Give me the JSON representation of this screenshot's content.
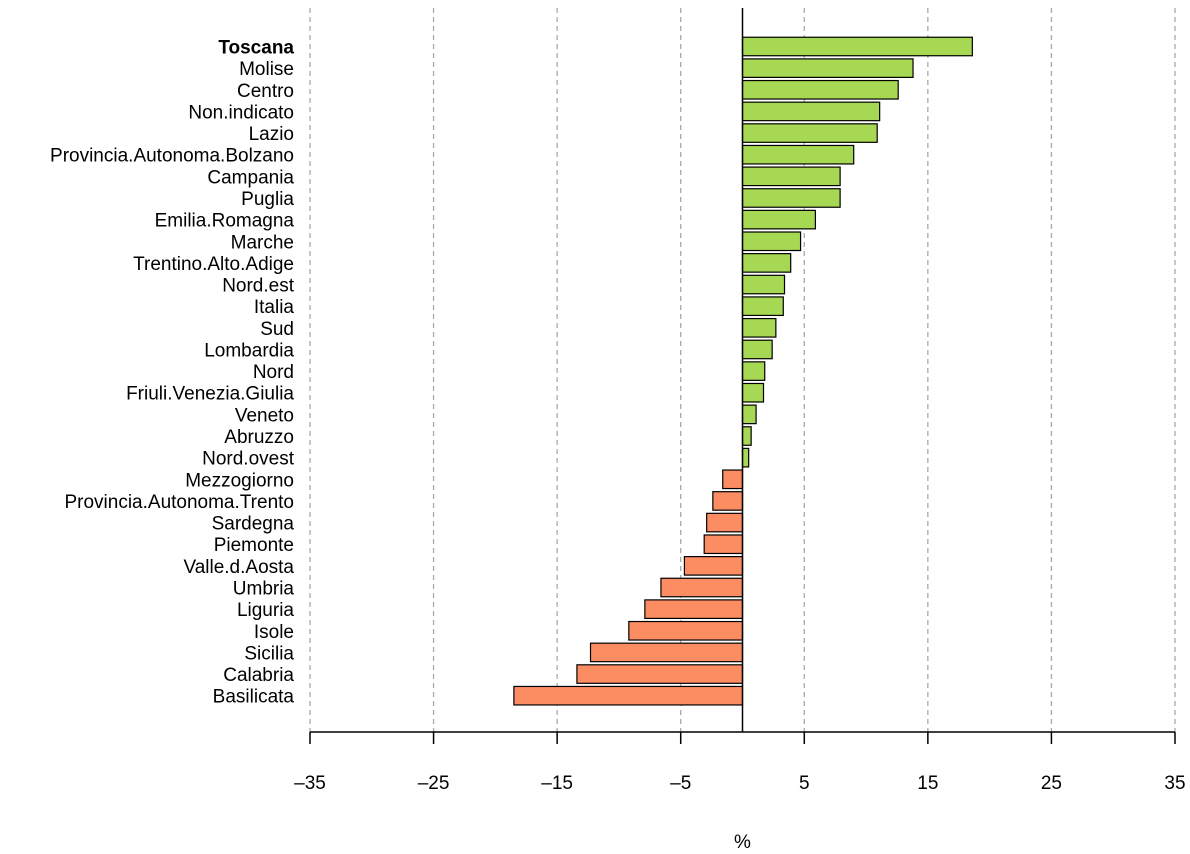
{
  "chart_data": {
    "type": "bar",
    "orientation": "horizontal",
    "xlabel": "%",
    "xlim": [
      -35,
      35
    ],
    "x_ticks": [
      -35,
      -25,
      -15,
      -5,
      5,
      15,
      25,
      35
    ],
    "x_tick_labels": [
      "–35",
      "–25",
      "–15",
      "–5",
      "5",
      "15",
      "25",
      "35"
    ],
    "grid": "vertical dashed",
    "highlight": "Toscana",
    "colors": {
      "positive": "#a6d854",
      "negative": "#fc8d62"
    },
    "categories": [
      "Toscana",
      "Molise",
      "Centro",
      "Non.indicato",
      "Lazio",
      "Provincia.Autonoma.Bolzano",
      "Campania",
      "Puglia",
      "Emilia.Romagna",
      "Marche",
      "Trentino.Alto.Adige",
      "Nord.est",
      "Italia",
      "Sud",
      "Lombardia",
      "Nord",
      "Friuli.Venezia.Giulia",
      "Veneto",
      "Abruzzo",
      "Nord.ovest",
      "Mezzogiorno",
      "Provincia.Autonoma.Trento",
      "Sardegna",
      "Piemonte",
      "Valle.d.Aosta",
      "Umbria",
      "Liguria",
      "Isole",
      "Sicilia",
      "Calabria",
      "Basilicata"
    ],
    "values": [
      18.6,
      13.8,
      12.6,
      11.1,
      10.9,
      9.0,
      7.9,
      7.9,
      5.9,
      4.7,
      3.9,
      3.4,
      3.3,
      2.7,
      2.4,
      1.8,
      1.7,
      1.1,
      0.7,
      0.5,
      -1.6,
      -2.4,
      -2.9,
      -3.1,
      -4.7,
      -6.6,
      -7.9,
      -9.2,
      -12.3,
      -13.4,
      -18.5
    ]
  }
}
